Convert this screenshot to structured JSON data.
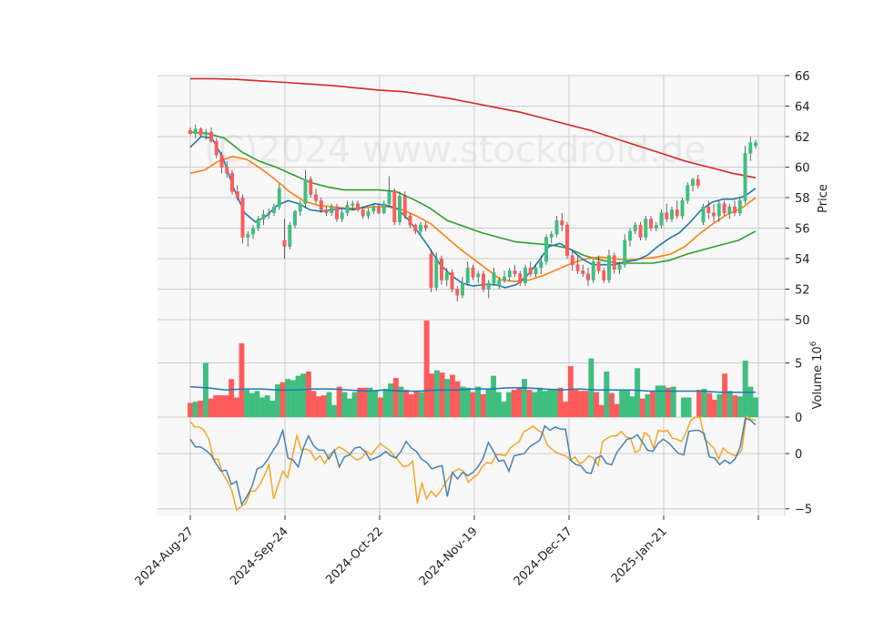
{
  "watermark": "(C)2024 www.stockdroid.de",
  "chart_data": [
    {
      "type": "candlestick",
      "panel": "price",
      "ylabel": "Price",
      "ylim": [
        50,
        66
      ],
      "yticks": [
        50,
        52,
        54,
        56,
        58,
        60,
        62,
        64,
        66
      ],
      "grid": true,
      "x_dates": [
        "2024-Aug-27",
        "2024-Sep-24",
        "2024-Oct-22",
        "2024-Nov-19",
        "2024-Dec-17",
        "2025-Jan-21"
      ],
      "candles_ohlc": [
        [
          62.4,
          62.6,
          62.1,
          62.2
        ],
        [
          62.2,
          62.8,
          61.9,
          62.5
        ],
        [
          62.5,
          62.6,
          62.0,
          62.1
        ],
        [
          62.1,
          62.5,
          61.8,
          62.3
        ],
        [
          62.3,
          62.6,
          61.6,
          61.7
        ],
        [
          61.7,
          61.9,
          60.6,
          60.8
        ],
        [
          60.8,
          61.0,
          59.6,
          60.0
        ],
        [
          60.0,
          60.4,
          59.3,
          59.6
        ],
        [
          59.6,
          59.8,
          58.2,
          58.4
        ],
        [
          58.4,
          58.8,
          57.8,
          58.0
        ],
        [
          58.0,
          58.2,
          55.0,
          55.4
        ],
        [
          55.4,
          55.8,
          54.8,
          55.6
        ],
        [
          55.6,
          56.2,
          55.3,
          56.0
        ],
        [
          56.0,
          56.8,
          55.8,
          56.6
        ],
        [
          56.6,
          57.2,
          56.2,
          56.9
        ],
        [
          56.9,
          57.3,
          56.6,
          57.0
        ],
        [
          57.0,
          57.6,
          56.8,
          57.4
        ],
        [
          57.4,
          58.9,
          57.2,
          58.6
        ],
        [
          55.2,
          56.6,
          54.0,
          54.8
        ],
        [
          54.8,
          56.4,
          54.6,
          56.2
        ],
        [
          56.2,
          57.2,
          56.0,
          57.1
        ],
        [
          57.1,
          57.8,
          56.8,
          57.6
        ],
        [
          57.6,
          59.8,
          57.3,
          59.2
        ],
        [
          59.2,
          59.4,
          58.0,
          58.2
        ],
        [
          58.2,
          58.6,
          57.6,
          57.8
        ],
        [
          57.8,
          58.0,
          57.0,
          57.2
        ],
        [
          57.2,
          57.4,
          56.8,
          57.0
        ],
        [
          57.0,
          57.6,
          56.8,
          57.4
        ],
        [
          57.4,
          57.6,
          56.4,
          56.6
        ],
        [
          56.6,
          57.3,
          56.4,
          57.0
        ],
        [
          57.0,
          57.8,
          56.8,
          57.5
        ],
        [
          57.5,
          57.8,
          57.2,
          57.6
        ],
        [
          57.6,
          57.8,
          57.1,
          57.2
        ],
        [
          57.2,
          57.4,
          56.6,
          56.8
        ],
        [
          56.8,
          57.3,
          56.6,
          57.1
        ],
        [
          57.1,
          57.6,
          56.9,
          57.4
        ],
        [
          57.4,
          57.6,
          56.9,
          57.0
        ],
        [
          57.0,
          57.8,
          56.9,
          57.6
        ],
        [
          57.6,
          59.4,
          57.4,
          58.4
        ],
        [
          58.4,
          58.6,
          56.2,
          56.4
        ],
        [
          56.4,
          58.4,
          56.2,
          58.1
        ],
        [
          58.1,
          58.4,
          56.6,
          56.8
        ],
        [
          56.8,
          57.0,
          56.0,
          56.2
        ],
        [
          56.2,
          56.3,
          55.6,
          55.8
        ],
        [
          55.8,
          56.4,
          55.6,
          56.2
        ],
        [
          56.2,
          56.4,
          55.8,
          56.0
        ],
        [
          54.3,
          54.6,
          51.8,
          52.1
        ],
        [
          52.1,
          54.4,
          51.9,
          54.0
        ],
        [
          54.0,
          54.2,
          52.3,
          52.6
        ],
        [
          52.6,
          53.4,
          52.2,
          53.1
        ],
        [
          53.1,
          53.3,
          51.8,
          52.0
        ],
        [
          52.0,
          52.2,
          51.2,
          51.6
        ],
        [
          51.6,
          52.8,
          51.4,
          52.4
        ],
        [
          52.4,
          53.8,
          52.2,
          53.4
        ],
        [
          53.4,
          53.6,
          52.6,
          52.8
        ],
        [
          52.8,
          53.2,
          52.4,
          53.0
        ],
        [
          53.0,
          53.2,
          51.8,
          52.0
        ],
        [
          52.0,
          52.6,
          51.4,
          52.4
        ],
        [
          52.4,
          53.4,
          52.2,
          53.1
        ],
        [
          52.2,
          52.8,
          52.0,
          52.6
        ],
        [
          52.6,
          53.2,
          52.4,
          52.8
        ],
        [
          52.8,
          53.4,
          52.5,
          53.2
        ],
        [
          53.2,
          53.6,
          52.8,
          53.0
        ],
        [
          53.0,
          53.2,
          52.2,
          52.4
        ],
        [
          52.4,
          53.6,
          52.2,
          53.4
        ],
        [
          53.4,
          53.8,
          52.8,
          53.0
        ],
        [
          53.0,
          53.6,
          52.8,
          53.4
        ],
        [
          53.4,
          54.2,
          53.0,
          53.8
        ],
        [
          53.8,
          55.6,
          53.6,
          55.4
        ],
        [
          55.4,
          55.8,
          55.0,
          55.6
        ],
        [
          55.6,
          56.8,
          55.4,
          56.5
        ],
        [
          56.5,
          57.0,
          55.8,
          56.2
        ],
        [
          56.2,
          56.4,
          54.0,
          54.2
        ],
        [
          54.2,
          54.6,
          53.2,
          53.6
        ],
        [
          53.6,
          54.2,
          53.0,
          53.2
        ],
        [
          53.2,
          53.6,
          52.8,
          53.0
        ],
        [
          53.0,
          53.4,
          52.2,
          52.6
        ],
        [
          52.6,
          54.0,
          52.4,
          53.8
        ],
        [
          53.8,
          54.2,
          53.0,
          53.2
        ],
        [
          53.2,
          53.4,
          52.4,
          52.6
        ],
        [
          52.6,
          54.6,
          52.4,
          54.2
        ],
        [
          54.2,
          54.4,
          53.0,
          53.3
        ],
        [
          53.3,
          53.8,
          53.0,
          53.6
        ],
        [
          53.6,
          55.6,
          53.4,
          55.2
        ],
        [
          55.2,
          56.0,
          54.8,
          55.8
        ],
        [
          55.8,
          56.4,
          55.6,
          56.2
        ],
        [
          56.2,
          56.4,
          55.2,
          55.4
        ],
        [
          55.4,
          56.8,
          55.2,
          56.6
        ],
        [
          56.6,
          56.8,
          55.8,
          56.0
        ],
        [
          56.0,
          56.4,
          55.8,
          56.2
        ],
        [
          56.2,
          57.2,
          56.0,
          57.0
        ],
        [
          57.0,
          57.6,
          56.4,
          56.6
        ],
        [
          56.6,
          57.4,
          56.4,
          57.2
        ],
        [
          57.2,
          57.8,
          56.6,
          56.8
        ],
        [
          56.8,
          58.0,
          56.6,
          57.8
        ],
        [
          57.8,
          59.0,
          57.6,
          58.8
        ],
        [
          58.8,
          59.3,
          58.4,
          59.2
        ],
        [
          59.2,
          59.5,
          58.6,
          58.8
        ],
        [
          56.4,
          57.6,
          56.2,
          57.4
        ],
        [
          57.4,
          57.8,
          56.6,
          57.0
        ],
        [
          57.0,
          57.6,
          56.4,
          56.8
        ],
        [
          56.8,
          57.8,
          56.4,
          57.6
        ],
        [
          57.6,
          57.8,
          56.8,
          57.0
        ],
        [
          57.0,
          57.6,
          56.6,
          57.4
        ],
        [
          57.4,
          57.8,
          56.8,
          57.0
        ],
        [
          57.0,
          58.0,
          56.8,
          57.8
        ],
        [
          57.8,
          61.4,
          57.6,
          60.9
        ],
        [
          60.9,
          62.0,
          60.4,
          61.6
        ],
        [
          61.4,
          61.8,
          61.2,
          61.6
        ]
      ],
      "moving_averages": [
        {
          "color": "#d62728",
          "values": [
            65.8,
            65.8,
            65.75,
            65.65,
            65.55,
            65.45,
            65.35,
            65.2,
            65.05,
            64.95,
            64.75,
            64.5,
            64.2,
            63.9,
            63.6,
            63.2,
            62.8,
            62.4,
            61.9,
            61.4,
            60.9,
            60.4,
            60.0,
            59.6,
            59.3
          ]
        },
        {
          "color": "#2ca02c",
          "values": [
            62.3,
            62.2,
            61.9,
            61.0,
            60.4,
            60.0,
            59.5,
            59.0,
            58.7,
            58.5,
            58.5,
            58.5,
            58.4,
            57.9,
            57.3,
            56.5,
            56.1,
            55.7,
            55.4,
            55.1,
            55.0,
            54.9,
            54.7,
            54.2,
            53.9,
            53.7,
            53.7,
            53.7,
            53.9,
            54.3,
            54.6,
            54.9,
            55.2,
            55.8
          ]
        },
        {
          "color": "#ff7f0e",
          "values": [
            59.6,
            59.8,
            60.4,
            60.7,
            60.5,
            59.9,
            59.2,
            58.4,
            57.8,
            57.5,
            57.4,
            57.3,
            57.3,
            57.4,
            57.4,
            57.2,
            56.8,
            56.3,
            55.5,
            54.7,
            54.0,
            53.3,
            52.6,
            52.5,
            52.6,
            52.9,
            53.3,
            53.7,
            54.0,
            54.1,
            54.0,
            53.9,
            54.0,
            54.1,
            54.3,
            54.8,
            55.6,
            56.3,
            56.9,
            57.3,
            58.0
          ]
        },
        {
          "color": "#1f77b4",
          "values": [
            61.3,
            62.0,
            61.9,
            60.6,
            58.6,
            57.0,
            56.4,
            56.8,
            57.5,
            57.8,
            57.6,
            57.2,
            57.1,
            57.2,
            57.3,
            57.2,
            57.4,
            57.6,
            57.5,
            57.3,
            56.6,
            55.7,
            54.7,
            53.6,
            52.9,
            52.4,
            52.2,
            52.3,
            52.3,
            52.1,
            52.3,
            52.9,
            53.8,
            54.8,
            55.0,
            54.6,
            54.0,
            53.6,
            53.6,
            53.6,
            53.8,
            53.9,
            54.2,
            54.8,
            55.3,
            55.7,
            56.4,
            57.2,
            57.7,
            57.9,
            57.9,
            58.1,
            58.6
          ]
        }
      ]
    },
    {
      "type": "bar",
      "panel": "volume",
      "ylabel": "Volume  10",
      "ylabel_exponent": "6",
      "ylim": [
        0,
        9
      ],
      "yticks": [
        0,
        5
      ],
      "grid": true,
      "values": [
        1.3,
        1.4,
        1.5,
        5.0,
        1.7,
        2.0,
        2.0,
        2.0,
        3.5,
        1.8,
        6.8,
        2.5,
        2.2,
        2.4,
        1.8,
        2.0,
        1.5,
        3.0,
        3.2,
        3.5,
        3.4,
        3.8,
        4.0,
        4.2,
        2.4,
        1.9,
        2.0,
        2.3,
        1.1,
        2.8,
        2.3,
        1.7,
        2.3,
        2.7,
        2.7,
        2.7,
        2.4,
        1.8,
        2.6,
        3.1,
        3.6,
        2.8,
        2.5,
        2.1,
        2.4,
        2.3,
        8.9,
        4.0,
        4.3,
        4.1,
        3.5,
        3.9,
        3.3,
        2.8,
        2.7,
        2.3,
        2.8,
        2.1,
        2.6,
        3.8,
        2.3,
        1.4,
        2.3,
        2.5,
        2.7,
        3.5,
        2.5,
        2.3,
        2.7,
        2.4,
        2.5,
        2.6,
        2.7,
        1.4,
        4.7,
        2.5,
        2.4,
        2.4,
        5.4,
        2.3,
        1.1,
        4.2,
        2.2,
        1.2,
        2.5,
        2.5,
        1.9,
        4.5,
        1.7,
        2.1,
        2.4,
        2.9,
        2.9,
        2.7,
        2.8,
        0.0,
        1.8,
        1.8,
        0.0,
        2.5,
        2.6,
        2.2,
        1.6,
        2.1,
        4.0,
        2.4,
        2.0,
        1.9,
        5.2,
        2.8,
        1.8
      ],
      "colors_up": "#3fbf7f",
      "colors_down": "#ff5b5b",
      "average": {
        "color": "#1f77b4",
        "values": [
          2.8,
          2.7,
          2.5,
          2.6,
          2.6,
          2.5,
          2.5,
          2.6,
          2.6,
          2.5,
          2.4,
          2.5,
          2.4,
          2.4,
          2.5,
          2.5,
          2.6,
          2.6,
          2.7,
          2.7,
          2.6,
          2.5,
          2.6,
          2.5,
          2.5,
          2.5,
          2.4,
          2.4,
          2.4,
          2.4,
          2.3,
          2.3,
          2.3
        ]
      }
    },
    {
      "type": "line",
      "panel": "oscillator",
      "ylim": [
        -5.6,
        3.3
      ],
      "yticks": [
        -5,
        0
      ],
      "grid": true,
      "series": [
        {
          "color": "#f5a623",
          "values": [
            2.9,
            2.4,
            2.4,
            2.1,
            1.3,
            -0.5,
            -0.5,
            -1.8,
            -2.5,
            -3.4,
            -5.1,
            -4.8,
            -4.5,
            -3.4,
            -3.4,
            -2.8,
            -2.0,
            -1.0,
            -4.1,
            -2.8,
            -1.6,
            -2.2,
            -0.3,
            1.6,
            0.3,
            0.4,
            0.2,
            -0.6,
            -0.2,
            -0.9,
            -0.1,
            0.2,
            0.6,
            0.4,
            0.1,
            -0.3,
            -0.6,
            -0.4,
            0.2,
            -0.1,
            0.4,
            0.9,
            0.6,
            0.3,
            -0.2,
            -0.7,
            -1.2,
            -1.1,
            -0.7,
            -4.5,
            -2.7,
            -4.1,
            -3.4,
            -3.9,
            -3.4,
            -2.7,
            -2.1,
            -1.6,
            -1.4,
            -1.6,
            -2.6,
            -2.2,
            -1.9,
            -1.2,
            -0.8,
            -0.9,
            -0.1,
            -0.1,
            -0.2,
            0.5,
            0.8,
            1.1,
            2.0,
            2.2,
            2.5,
            2.1,
            1.9,
            0.8,
            0.4,
            0.1,
            -0.1,
            -0.2,
            -0.6,
            -0.3,
            -0.9,
            -0.7,
            -0.2,
            -0.4,
            -1.1,
            1.1,
            1.4,
            1.6,
            1.6,
            2.0,
            1.5,
            1.4,
            0.1,
            0.3,
            1.9,
            1.6,
            0.5,
            2.1,
            2.0,
            2.1,
            1.4,
            1.3,
            1.1,
            1.9,
            3.0,
            3.3,
            3.3,
            1.3,
            0.9,
            0.5,
            -0.5,
            0.5,
            0.1,
            -0.1,
            -0.2,
            0.3,
            3.4,
            3.1,
            3.0
          ]
        },
        {
          "color": "#4682b4",
          "values": [
            1.3,
            0.6,
            0.6,
            0.3,
            -0.1,
            -0.9,
            -1.6,
            -1.5,
            -2.8,
            -2.5,
            -4.6,
            -3.9,
            -3.0,
            -1.4,
            -1.2,
            -0.6,
            0.2,
            0.9,
            2.1,
            -0.4,
            -0.6,
            -1.2,
            0.5,
            1.6,
            0.7,
            0.3,
            0.3,
            -0.5,
            0.3,
            -1.2,
            -0.3,
            -0.1,
            0.5,
            0.6,
            0.2,
            -0.6,
            -0.4,
            -0.2,
            0.2,
            -0.2,
            -0.4,
            0.2,
            1.1,
            0.5,
            0.2,
            -0.5,
            -0.8,
            -1.4,
            -1.2,
            -1.1,
            -3.9,
            -1.7,
            -2.3,
            -1.7,
            -2.0,
            -1.7,
            -1.2,
            -0.4,
            1.0,
            0.2,
            -0.7,
            -0.6,
            -1.6,
            -0.2,
            -0.1,
            0.0,
            0.6,
            0.9,
            1.2,
            2.5,
            2.1,
            2.4,
            2.2,
            2.2,
            -0.6,
            -1.0,
            -1.1,
            -1.7,
            -1.8,
            -0.4,
            -0.2,
            -0.9,
            -1.0,
            0.1,
            0.7,
            1.3,
            1.4,
            1.7,
            1.0,
            0.3,
            0.2,
            0.9,
            1.3,
            1.0,
            0.5,
            0.0,
            -0.1,
            2.0,
            2.1,
            2.1,
            1.8,
            -0.3,
            -0.4,
            -1.0,
            -0.6,
            -0.9,
            -0.5,
            0.6,
            3.2,
            3.0,
            2.6
          ]
        }
      ]
    }
  ]
}
